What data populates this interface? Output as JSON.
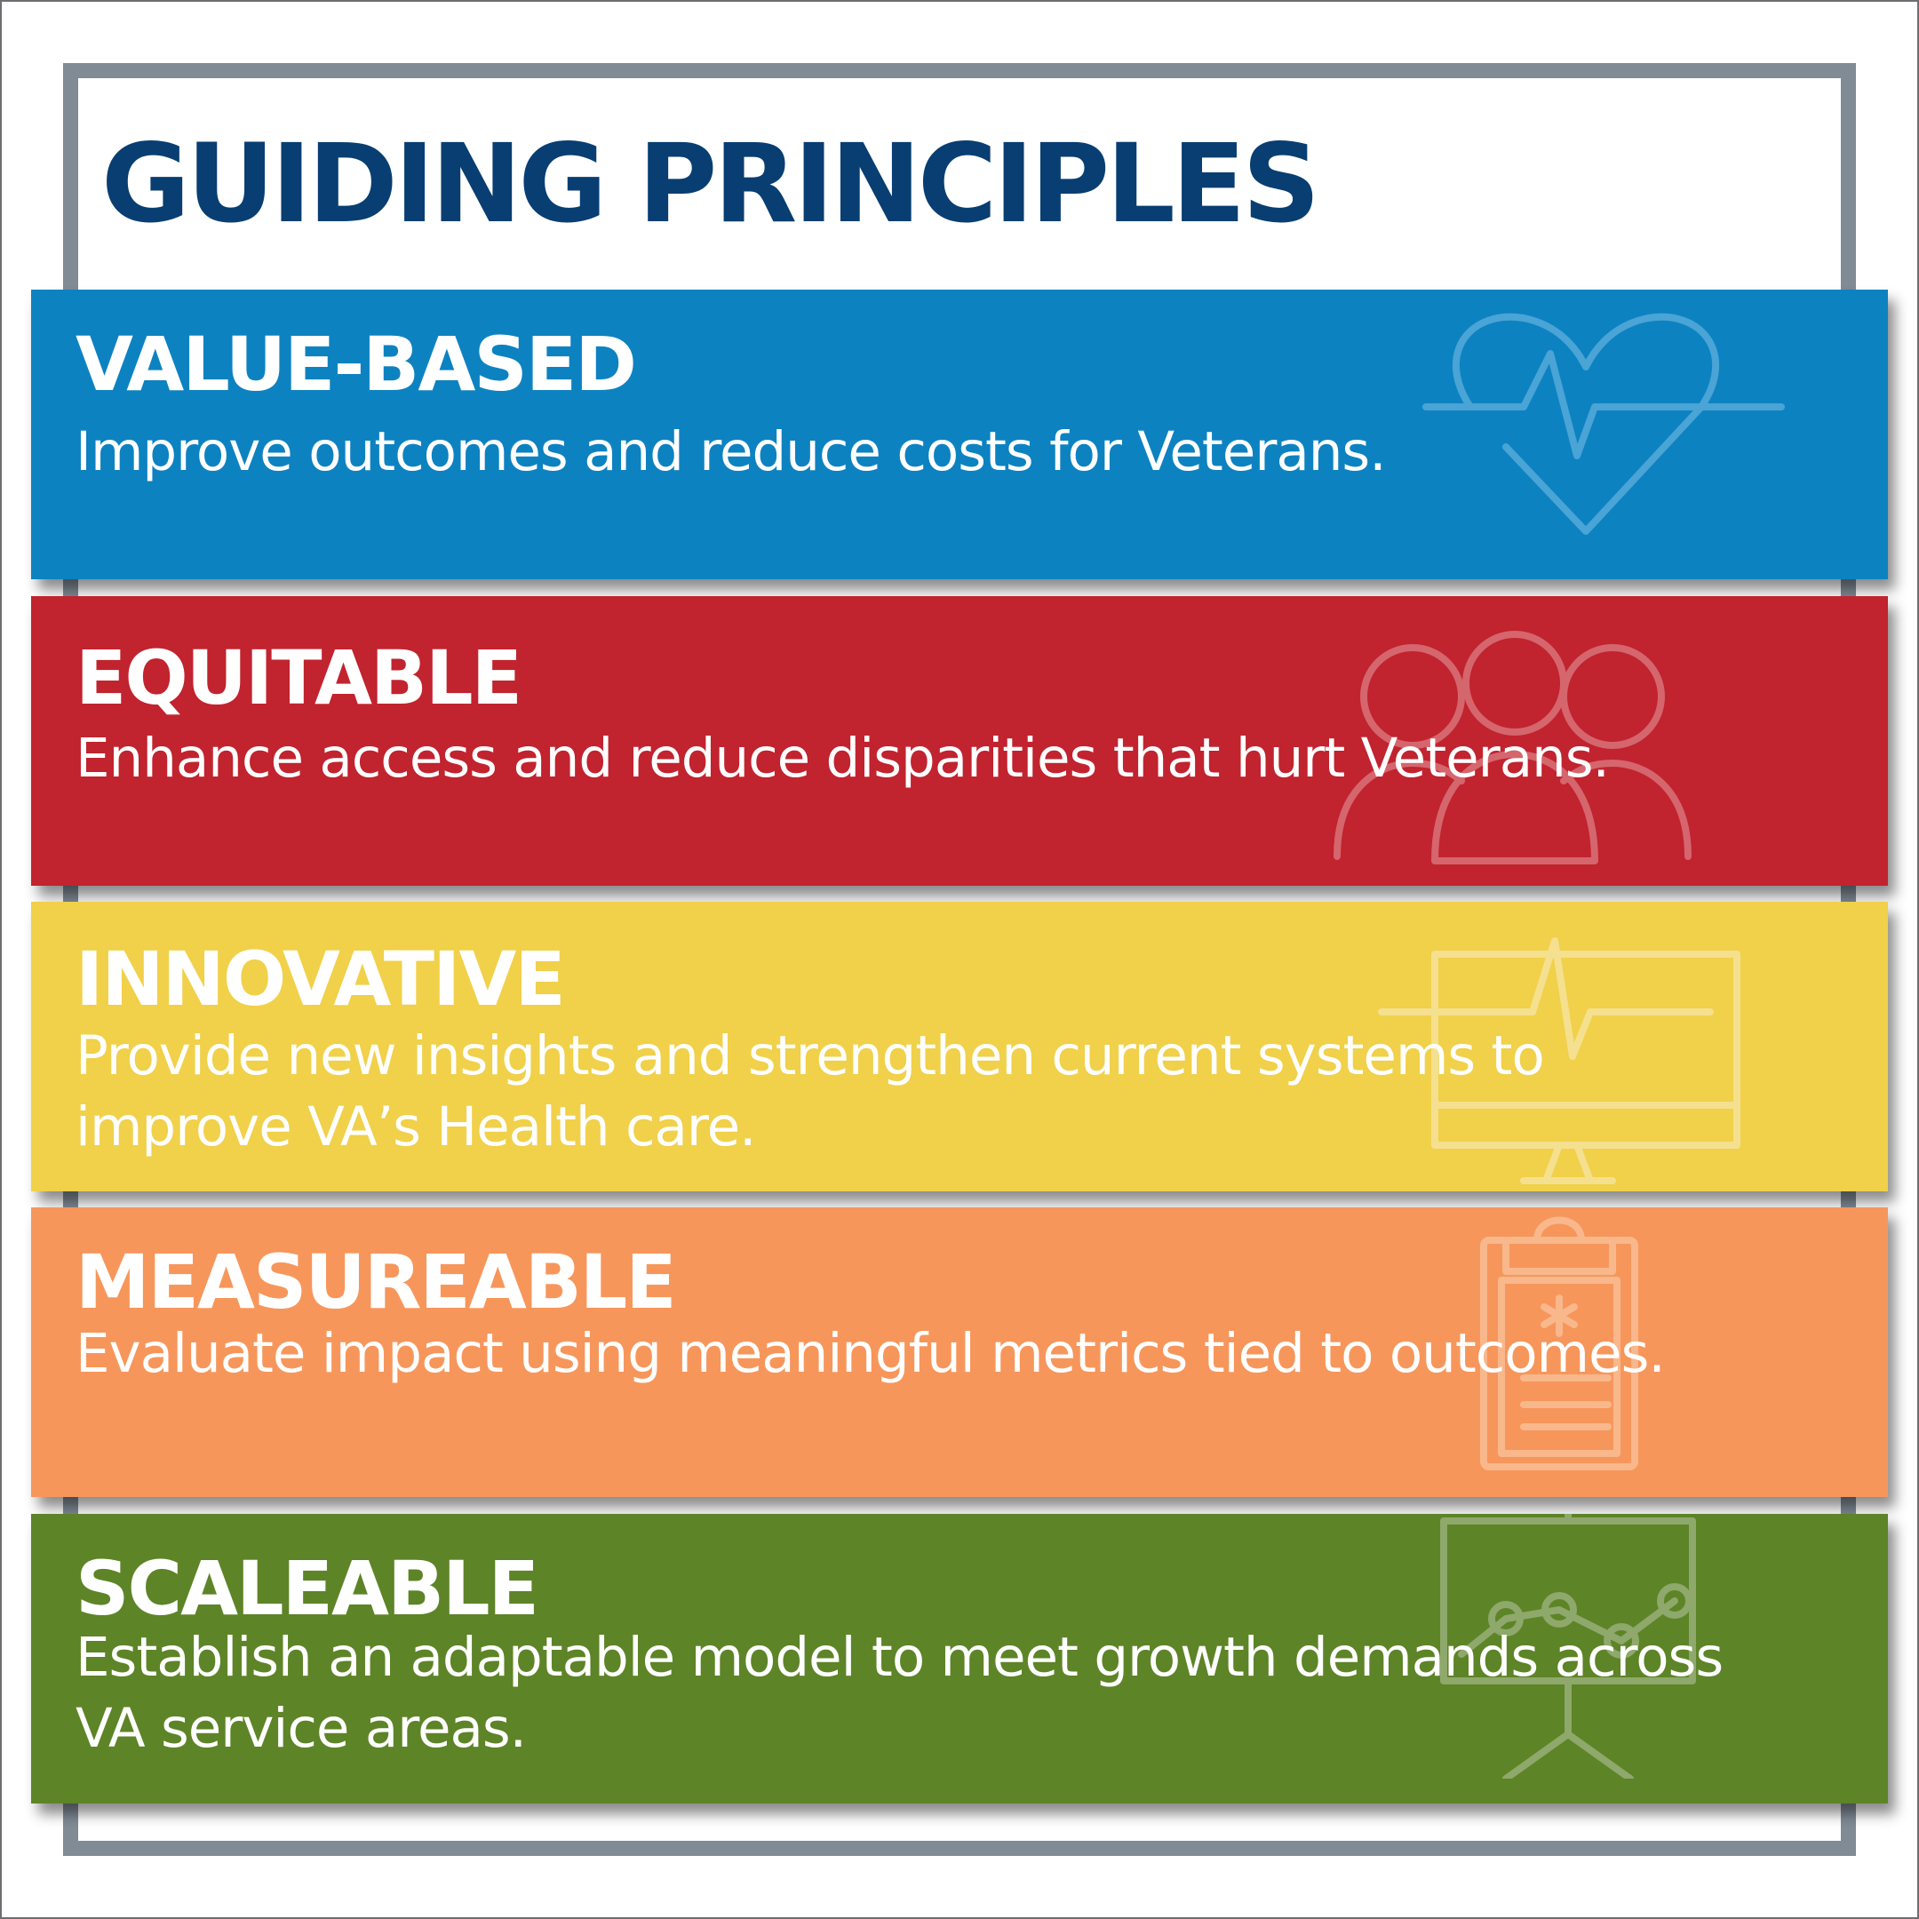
{
  "title": "GUIDING PRINCIPLES",
  "colors": {
    "title": "#083e72",
    "frame": "#808b96",
    "value_based": "#0d82c1",
    "equitable": "#c1232f",
    "innovative": "#f1d04a",
    "measureable": "#f7965b",
    "scaleable": "#5d8427"
  },
  "principles": [
    {
      "heading": "VALUE-BASED",
      "description": "Improve outcomes and reduce costs for Veterans.",
      "icon": "heart-pulse-icon"
    },
    {
      "heading": "EQUITABLE",
      "description": "Enhance access and reduce disparities that hurt Veterans.",
      "icon": "people-group-icon"
    },
    {
      "heading": "INNOVATIVE",
      "description": "Provide new insights and strengthen current systems to improve VA’s Health care.",
      "icon": "monitor-pulse-icon"
    },
    {
      "heading": "MEASUREABLE",
      "description": "Evaluate impact using meaningful metrics tied to outcomes.",
      "icon": "clipboard-icon"
    },
    {
      "heading": "SCALEABLE",
      "description": "Establish an adaptable model to meet growth demands across VA service areas.",
      "icon": "presentation-chart-icon"
    }
  ]
}
